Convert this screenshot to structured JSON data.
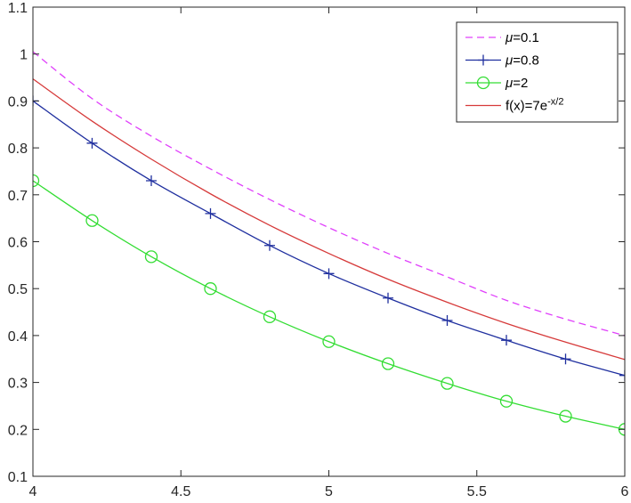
{
  "chart_data": {
    "type": "line",
    "xlim": [
      4,
      6
    ],
    "ylim": [
      0.1,
      1.1
    ],
    "xticks": [
      4,
      4.5,
      5,
      5.5,
      6
    ],
    "xtick_labels": [
      "4",
      "4.5",
      "5",
      "5.5",
      "6"
    ],
    "yticks": [
      0.1,
      0.2,
      0.3,
      0.4,
      0.5,
      0.6,
      0.7,
      0.8,
      0.9,
      1.0,
      1.1
    ],
    "ytick_labels": [
      "0.1",
      "0.2",
      "0.3",
      "0.4",
      "0.5",
      "0.6",
      "0.7",
      "0.8",
      "0.9",
      "1",
      "1.1"
    ],
    "grid": false,
    "legend_position": "top-right",
    "series": [
      {
        "legend_prefix": "μ",
        "legend_suffix": "=0.1",
        "color": "#e040fb",
        "line_style": "dashed",
        "marker": "none",
        "x": [
          4,
          4.2,
          4.4,
          4.6,
          4.8,
          5,
          5.2,
          5.4,
          5.6,
          5.8,
          6
        ],
        "y": [
          1.005,
          0.905,
          0.825,
          0.755,
          0.69,
          0.63,
          0.575,
          0.525,
          0.475,
          0.435,
          0.4
        ]
      },
      {
        "legend_prefix": "μ",
        "legend_suffix": "=0.8",
        "color": "#1f2f9f",
        "line_style": "solid",
        "marker": "plus",
        "x": [
          4,
          4.2,
          4.4,
          4.6,
          4.8,
          5,
          5.2,
          5.4,
          5.6,
          5.8,
          6
        ],
        "y": [
          0.9,
          0.81,
          0.73,
          0.66,
          0.592,
          0.532,
          0.48,
          0.432,
          0.39,
          0.35,
          0.315
        ]
      },
      {
        "legend_prefix": "μ",
        "legend_suffix": "=2",
        "color": "#33dd33",
        "line_style": "solid",
        "marker": "circle",
        "x": [
          4,
          4.2,
          4.4,
          4.6,
          4.8,
          5,
          5.2,
          5.4,
          5.6,
          5.8,
          6
        ],
        "y": [
          0.73,
          0.645,
          0.568,
          0.5,
          0.44,
          0.387,
          0.34,
          0.298,
          0.26,
          0.228,
          0.2
        ]
      },
      {
        "legend_prefix": "f(x)=7e",
        "legend_sup": "-x/2",
        "legend_suffix": "",
        "color": "#d63a3a",
        "line_style": "solid",
        "marker": "none",
        "x": [
          4,
          4.2,
          4.4,
          4.6,
          4.8,
          5,
          5.2,
          5.4,
          5.6,
          5.8,
          6
        ],
        "y": [
          0.947,
          0.857,
          0.776,
          0.702,
          0.635,
          0.575,
          0.52,
          0.471,
          0.426,
          0.386,
          0.349
        ]
      }
    ]
  }
}
